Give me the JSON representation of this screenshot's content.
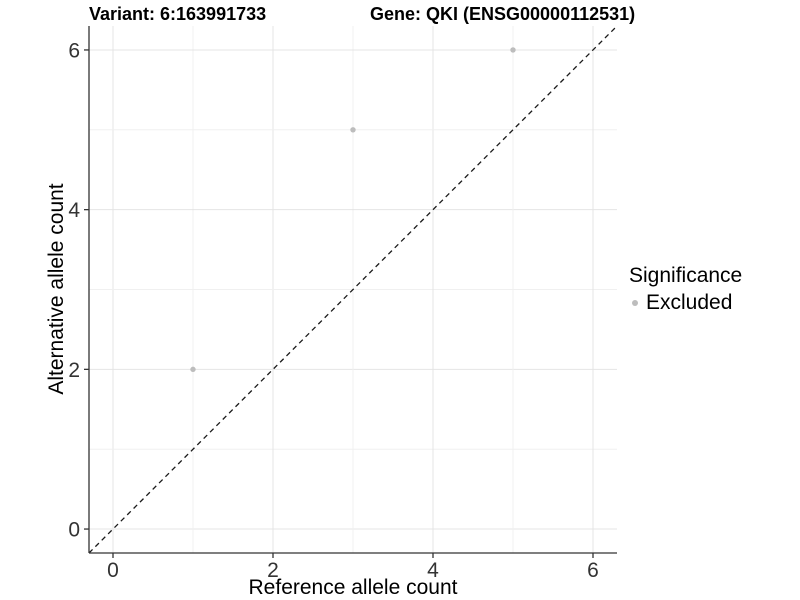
{
  "colors": {
    "background": "#ffffff",
    "grid_major": "#e4e4e4",
    "grid_minor": "#f0f0f0",
    "axis": "#333333",
    "tick_text": "#333333",
    "title_text": "#000000",
    "point": "#bdbdbd",
    "reference_line": "#1a1a1a"
  },
  "chart_data": {
    "type": "scatter",
    "title_left": "Variant: 6:163991733",
    "title_right": "Gene: QKI (ENSG00000112531)",
    "xlabel": "Reference allele count",
    "ylabel": "Alternative allele count",
    "xlim": [
      -0.3,
      6.3
    ],
    "ylim": [
      -0.3,
      6.3
    ],
    "x_ticks": [
      0,
      2,
      4,
      6
    ],
    "y_ticks": [
      0,
      2,
      4,
      6
    ],
    "minor_gridlines": [
      1,
      3,
      5
    ],
    "grid": true,
    "points": [
      {
        "x": 1,
        "y": 2,
        "series": "Excluded"
      },
      {
        "x": 3,
        "y": 5,
        "series": "Excluded"
      },
      {
        "x": 5,
        "y": 6,
        "series": "Excluded"
      }
    ],
    "point_color": "#bdbdbd",
    "point_radius": 2.7,
    "reference_line": {
      "slope": 1,
      "intercept": 0,
      "style": "dashed",
      "color": "#1a1a1a"
    },
    "legend": {
      "title": "Significance",
      "position": "right",
      "items": [
        {
          "label": "Excluded",
          "color": "#bdbdbd",
          "marker": "circle"
        }
      ]
    }
  }
}
